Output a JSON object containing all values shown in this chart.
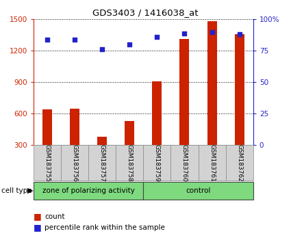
{
  "title": "GDS3403 / 1416038_at",
  "categories": [
    "GSM183755",
    "GSM183756",
    "GSM183757",
    "GSM183758",
    "GSM183759",
    "GSM183760",
    "GSM183761",
    "GSM183762"
  ],
  "counts": [
    640,
    645,
    380,
    530,
    910,
    1310,
    1480,
    1360
  ],
  "percentile_ranks": [
    84,
    84,
    76,
    80,
    86,
    89,
    90,
    88
  ],
  "bar_color": "#CC2200",
  "dot_color": "#2222CC",
  "ylim_left": [
    300,
    1500
  ],
  "yticks_left": [
    300,
    600,
    900,
    1200,
    1500
  ],
  "ylim_right": [
    0,
    100
  ],
  "yticks_right": [
    0,
    25,
    50,
    75,
    100
  ],
  "ytick_labels_right": [
    "0",
    "25",
    "50",
    "75",
    "100%"
  ],
  "grid_color": "#000000",
  "bar_width": 0.35,
  "legend_count_label": "count",
  "legend_pct_label": "percentile rank within the sample",
  "cell_type_label": "cell type",
  "group_label_1": "zone of polarizing activity",
  "group_label_2": "control",
  "n_group1": 4,
  "n_group2": 4
}
